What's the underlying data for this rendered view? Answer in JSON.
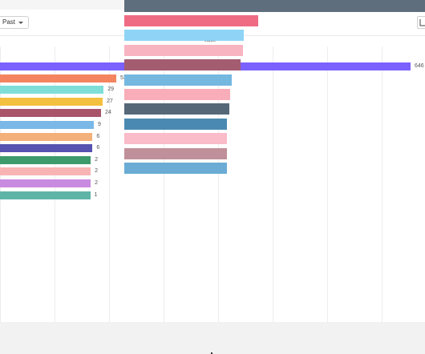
{
  "toolbar": {
    "range_label": "Past",
    "view_icon": "chart-layout-icon"
  },
  "overlay": {
    "axis_label": "Value"
  },
  "chart_data": {
    "type": "bar",
    "orientation": "horizontal",
    "values": [
      646,
      53,
      29,
      27,
      24,
      9,
      6,
      6,
      2,
      2,
      2,
      1
    ],
    "value_labels": [
      "646",
      "53",
      "29",
      "27",
      "24",
      "9",
      "6",
      "6",
      "2",
      "2",
      "2",
      "1"
    ],
    "colors": [
      "#7b61ff",
      "#f4845f",
      "#7fded8",
      "#f4c040",
      "#a8546b",
      "#7ab8e8",
      "#f4b07a",
      "#5552b0",
      "#3d9a6a",
      "#f8b4b4",
      "#c98be0",
      "#5fb4a8"
    ],
    "grid": true
  },
  "overlay_bars": {
    "colors": [
      "#ef6b84",
      "#8fd4f6",
      "#f8b4c0",
      "#a35c70",
      "#74b8e0",
      "#f8adb8",
      "#556878",
      "#4a8ab2",
      "#f9bcc8",
      "#c0909a",
      "#6aacd4"
    ]
  }
}
